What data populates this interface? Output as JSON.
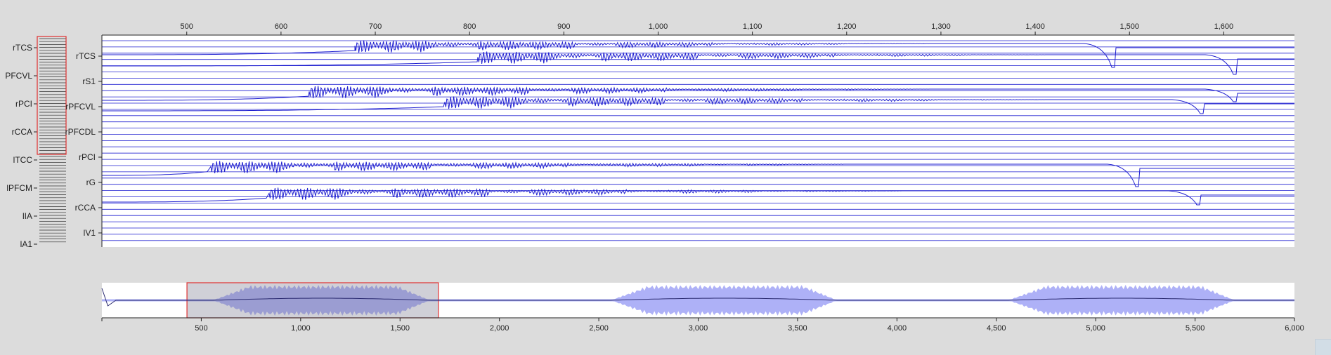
{
  "app": {
    "colors": {
      "background": "#dcdcdc",
      "plot_background": "#ffffff",
      "trace": "#1f1fd0",
      "selection": "#e03030",
      "envelope": "#aeb1f7",
      "envelope_selected": "#8c8dd8",
      "navigator_line": "#2a2a70"
    }
  },
  "overview": {
    "labels": [
      "rTCS",
      "PFCVL",
      "rPCI",
      "rCCA",
      "lTCC",
      "lPFCM",
      "lIA",
      "lA1"
    ]
  },
  "main_plot": {
    "x_ticks": [
      "500",
      "600",
      "700",
      "800",
      "900",
      "1,000",
      "1,100",
      "1,200",
      "1,300",
      "1,400",
      "1,500",
      "1,600"
    ],
    "x_tick_values": [
      500,
      600,
      700,
      800,
      900,
      1000,
      1100,
      1200,
      1300,
      1400,
      1500,
      1600
    ],
    "x_range": [
      410,
      1675
    ],
    "channel_labels": [
      "rTCS",
      "rS1",
      "rPFCVL",
      "rPFCDL",
      "rPCI",
      "rG",
      "rCCA",
      "lV1"
    ]
  },
  "navigator": {
    "x_ticks": [
      "500",
      "1,000",
      "1,500",
      "2,000",
      "2,500",
      "3,000",
      "3,500",
      "4,000",
      "4,500",
      "5,000",
      "5,500",
      "6,000"
    ],
    "x_tick_values": [
      500,
      1000,
      1500,
      2000,
      2500,
      3000,
      3500,
      4000,
      4500,
      5000,
      5500,
      6000
    ],
    "x_range": [
      0,
      6000
    ],
    "selection_range": [
      428,
      1693
    ]
  }
}
